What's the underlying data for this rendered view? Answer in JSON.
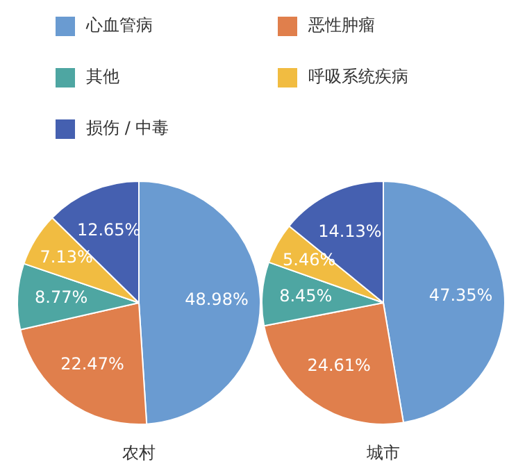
{
  "chart_data": [
    {
      "type": "pie",
      "xlabel": "农村",
      "legend": "top",
      "categories": [
        "心血管病",
        "恶性肿瘤",
        "其他",
        "呼吸系统疾病",
        "损伤 / 中毒"
      ],
      "values": [
        48.98,
        22.47,
        8.77,
        7.13,
        12.65
      ],
      "value_labels": [
        "48.98%",
        "22.47%",
        "8.77%",
        "7.13%",
        "12.65%"
      ],
      "colors": [
        "#6a9bd1",
        "#e07f4c",
        "#4ea6a2",
        "#f1bc41",
        "#4560b0"
      ]
    },
    {
      "type": "pie",
      "xlabel": "城市",
      "categories": [
        null,
        null,
        null,
        null,
        null
      ],
      "values": [
        47.35,
        24.61,
        8.45,
        5.46,
        14.13
      ],
      "value_labels": [
        "47.35%",
        "24.61%",
        "8.45%",
        "5.46%",
        "14.13%"
      ],
      "colors": [
        "#6a9bd1",
        "#e07f4c",
        "#4ea6a2",
        "#f1bc41",
        "#4560b0"
      ]
    }
  ]
}
